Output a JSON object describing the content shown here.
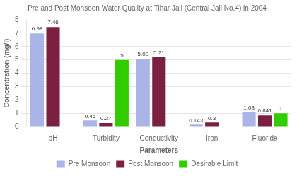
{
  "chart_data": {
    "type": "bar",
    "title": "Pre and Post Monsoon Water Quality at Tihar Jail (Central Jail No.4) in 2004",
    "x_label": "Parameters",
    "y_label": "Concentration (mg/l)",
    "categories": [
      "pH",
      "Turbidity",
      "Conductivity",
      "Iron",
      "Fluoride"
    ],
    "series": [
      {
        "name": "Pre Monsoon",
        "color": "#aab4e8",
        "values": [
          6.98,
          0.46,
          5.09,
          0.143,
          1.08
        ]
      },
      {
        "name": "Post Monsoon",
        "color": "#7b2040",
        "values": [
          7.46,
          0.27,
          5.21,
          0.3,
          0.841
        ]
      },
      {
        "name": "Desirable Limit",
        "color": "#33cc00",
        "values": [
          null,
          5,
          null,
          null,
          1
        ]
      }
    ],
    "ylim": [
      0,
      8
    ],
    "yticks": [
      0,
      1,
      2,
      3,
      4,
      5,
      6,
      7,
      8
    ],
    "grid": true,
    "legend": "bottom",
    "data_labels": true
  }
}
